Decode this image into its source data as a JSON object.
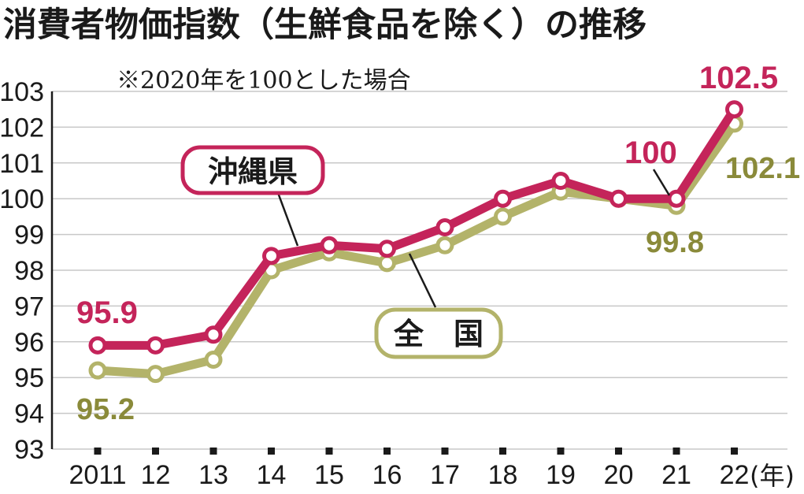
{
  "chart_data": {
    "type": "line",
    "title": "消費者物価指数（生鮮食品を除く）の推移",
    "note": "※2020年を100とした場合",
    "x_unit": "(年)",
    "categories": [
      "2011",
      "12",
      "13",
      "14",
      "15",
      "16",
      "17",
      "18",
      "19",
      "20",
      "21",
      "22"
    ],
    "ylim": [
      93,
      103
    ],
    "yticks": [
      "93",
      "94",
      "95",
      "96",
      "97",
      "98",
      "99",
      "100",
      "101",
      "102",
      "103"
    ],
    "grid": true,
    "series": [
      {
        "name": "沖縄県",
        "color": "#c4245a",
        "values": [
          95.9,
          95.9,
          96.2,
          98.4,
          98.7,
          98.6,
          99.2,
          100.0,
          100.5,
          100.0,
          100.0,
          102.5
        ]
      },
      {
        "name": "全　国",
        "color": "#b3b36a",
        "values": [
          95.2,
          95.1,
          95.5,
          98.0,
          98.5,
          98.2,
          98.7,
          99.5,
          100.2,
          100.0,
          99.8,
          102.1
        ]
      }
    ],
    "data_labels": {
      "okinawa_first": "95.9",
      "okinawa_21": "100",
      "okinawa_last": "102.5",
      "national_first": "95.2",
      "national_21": "99.8",
      "national_last": "102.1"
    }
  }
}
